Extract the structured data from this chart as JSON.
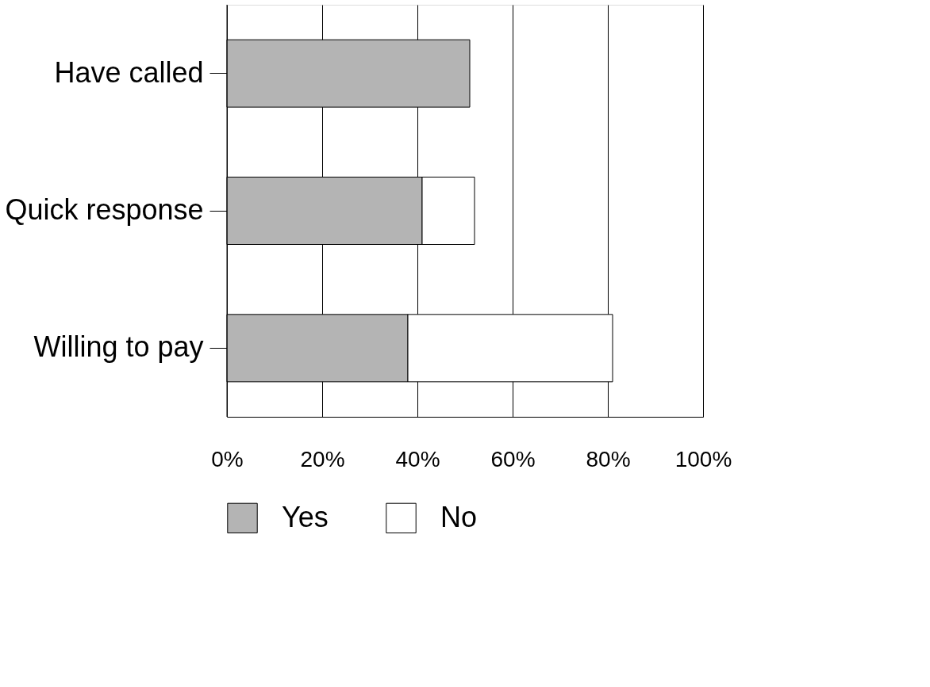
{
  "chart_data": {
    "type": "bar",
    "orientation": "horizontal",
    "stacked": true,
    "categories": [
      "Have called",
      "Quick response",
      "Willing to pay"
    ],
    "series": [
      {
        "name": "Yes",
        "color": "#b4b4b4",
        "values": [
          51,
          41,
          38
        ]
      },
      {
        "name": "No",
        "color": "#ffffff",
        "values": [
          null,
          11,
          43
        ]
      }
    ],
    "xlim": [
      0,
      100
    ],
    "xticks": [
      {
        "value": 0,
        "label": "0%"
      },
      {
        "value": 20,
        "label": "20%"
      },
      {
        "value": 40,
        "label": "40%"
      },
      {
        "value": 60,
        "label": "60%"
      },
      {
        "value": 80,
        "label": "80%"
      },
      {
        "value": 100,
        "label": "100%"
      }
    ],
    "grid": "x",
    "legend": "bottom"
  }
}
